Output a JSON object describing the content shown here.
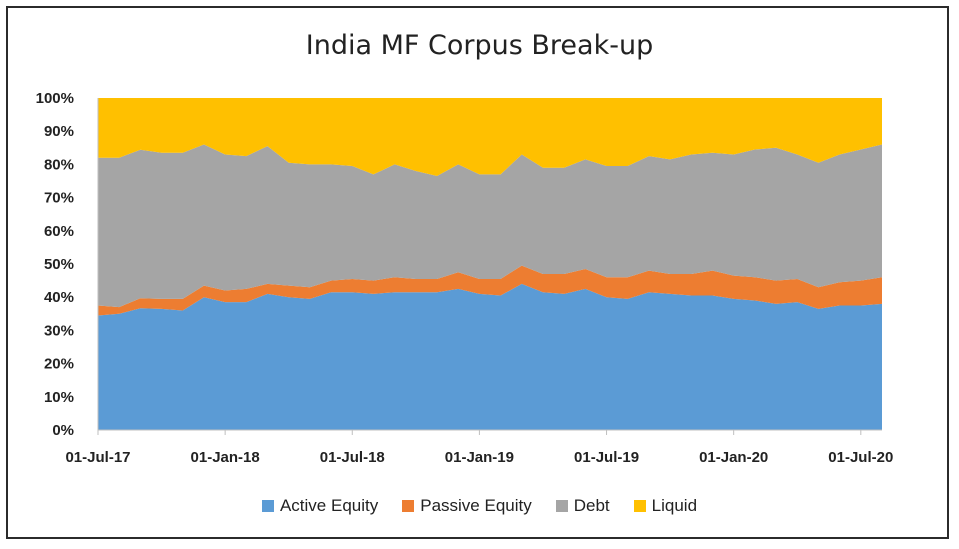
{
  "chart_data": {
    "type": "area",
    "stacked": true,
    "title": "India MF Corpus Break-up",
    "xlabel": "",
    "ylabel": "",
    "ylim": [
      0,
      100
    ],
    "y_tick_labels": [
      "0%",
      "10%",
      "20%",
      "30%",
      "40%",
      "50%",
      "60%",
      "70%",
      "80%",
      "90%",
      "100%"
    ],
    "x_tick_labels": [
      "01-Jul-17",
      "01-Jan-18",
      "01-Jul-18",
      "01-Jan-19",
      "01-Jul-19",
      "01-Jan-20",
      "01-Jul-20"
    ],
    "x_tick_indices": [
      0,
      6,
      12,
      18,
      24,
      30,
      36
    ],
    "legend_position": "bottom",
    "series": [
      {
        "name": "Active Equity",
        "color": "#5b9bd5",
        "values": [
          34.5,
          35,
          36.5,
          36.5,
          36,
          40,
          38.5,
          38.5,
          41,
          40,
          39.5,
          41.5,
          41.5,
          41,
          41.5,
          41.5,
          41.5,
          42.5,
          41,
          40.5,
          44,
          41.5,
          41,
          42.5,
          40,
          39.5,
          41.5,
          41,
          40.5,
          40.5,
          39.5,
          39,
          38,
          38.5,
          36.5,
          37.5,
          37.5,
          38
        ]
      },
      {
        "name": "Passive Equity",
        "color": "#ed7d31",
        "values": [
          3,
          2,
          3,
          3,
          3.5,
          3.5,
          3.5,
          4,
          3,
          3.5,
          3.5,
          3.5,
          4,
          4,
          4.5,
          4,
          4,
          5,
          4.5,
          5,
          5.5,
          5.5,
          6,
          6,
          6,
          6.5,
          6.5,
          6,
          6.5,
          7.5,
          7,
          7,
          7,
          7,
          6.5,
          7,
          7.5,
          8
        ]
      },
      {
        "name": "Debt",
        "color": "#a5a5a5",
        "values": [
          44.5,
          45,
          44.5,
          44,
          44,
          42.5,
          41,
          40,
          41.5,
          37,
          37,
          35,
          34,
          32,
          34,
          32.5,
          31,
          32.5,
          31.5,
          31.5,
          33.5,
          32,
          32,
          33,
          33.5,
          33.5,
          34.5,
          34.5,
          36,
          35.5,
          36.5,
          38.5,
          40,
          37.5,
          37.5,
          38.5,
          39.5,
          40
        ]
      },
      {
        "name": "Liquid",
        "color": "#ffc000",
        "values": [
          18,
          18,
          15.5,
          16.5,
          16.5,
          14,
          17,
          17.5,
          14.5,
          19.5,
          20,
          20,
          20.5,
          23,
          20,
          22,
          23.5,
          20,
          23,
          23,
          17,
          21,
          21,
          18.5,
          20.5,
          20.5,
          17.5,
          18.5,
          17,
          16.5,
          17,
          15.5,
          15,
          17,
          19.5,
          17,
          15.5,
          14
        ]
      }
    ]
  }
}
